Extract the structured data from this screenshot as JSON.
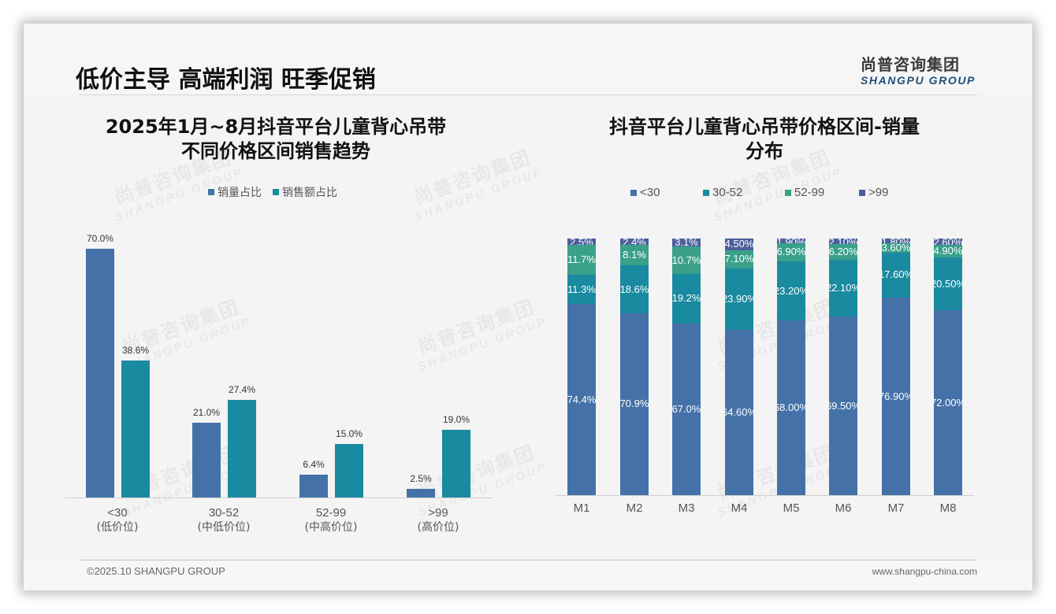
{
  "page": {
    "title": "低价主导 高端利润 旺季促销",
    "logo_cn": "尚普咨询集团",
    "logo_en": "SHANGPU GROUP",
    "watermark_cn": "尚普咨询集团",
    "watermark_en": "SHANGPU GROUP"
  },
  "footer": {
    "copyright": "©2025.10 SHANGPU GROUP",
    "website": "www.shangpu-china.com"
  },
  "colors": {
    "lt30": "#4472a8",
    "r30_52": "#1a8aa0",
    "r52_99": "#3aa08a",
    "gt99": "#4c5f9c",
    "volume_share": "#4472a8",
    "sales_share": "#1a8aa0"
  },
  "left_chart": {
    "title_line1": "2025年1月~8月抖音平台儿童背心吊带",
    "title_line2": "不同价格区间销售趋势",
    "legend": [
      "销量占比",
      "销售额占比"
    ],
    "categories": [
      {
        "range": "<30",
        "tier": "(低价位)"
      },
      {
        "range": "30-52",
        "tier": "(中低价位)"
      },
      {
        "range": "52-99",
        "tier": "(中高价位)"
      },
      {
        "range": ">99",
        "tier": "(高价位)"
      }
    ],
    "volume_labels": [
      "70.0%",
      "21.0%",
      "6.4%",
      "2.5%"
    ],
    "sales_labels": [
      "38.6%",
      "27.4%",
      "15.0%",
      "19.0%"
    ]
  },
  "right_chart": {
    "title_line1": "抖音平台儿童背心吊带价格区间-销量",
    "title_line2": "分布",
    "legend": [
      "<30",
      "30-52",
      "52-99",
      ">99"
    ],
    "months": [
      "M1",
      "M2",
      "M3",
      "M4",
      "M5",
      "M6",
      "M7",
      "M8"
    ],
    "labels": {
      "lt30": [
        "74.4%",
        "70.9%",
        "67.0%",
        "64.60%",
        "68.00%",
        "69.50%",
        "76.90%",
        "72.00%"
      ],
      "r30_52": [
        "11.3%",
        "18.6%",
        "19.2%",
        "23.90%",
        "23.20%",
        "22.10%",
        "17.60%",
        "20.50%"
      ],
      "r52_99": [
        "11.7%",
        "8.1%",
        "10.7%",
        "7.10%",
        "6.90%",
        "6.20%",
        "3.60%",
        "4.90%"
      ],
      "gt99": [
        "2.5%",
        "2.4%",
        "3.1%",
        "4.50%",
        "1.90%",
        "2.10%",
        "1.80%",
        "2.60%"
      ]
    }
  },
  "chart_data": [
    {
      "type": "bar",
      "title": "2025年1月~8月抖音平台儿童背心吊带不同价格区间销售趋势",
      "categories": [
        "<30 (低价位)",
        "30-52 (中低价位)",
        "52-99 (中高价位)",
        ">99 (高价位)"
      ],
      "series": [
        {
          "name": "销量占比",
          "values": [
            70.0,
            21.0,
            6.4,
            2.5
          ]
        },
        {
          "name": "销售额占比",
          "values": [
            38.6,
            27.4,
            15.0,
            19.0
          ]
        }
      ],
      "xlabel": "",
      "ylabel": "",
      "unit": "%",
      "legend_position": "top",
      "grid": false
    },
    {
      "type": "bar",
      "stacked": true,
      "percent_stacked": true,
      "title": "抖音平台儿童背心吊带价格区间-销量分布",
      "categories": [
        "M1",
        "M2",
        "M3",
        "M4",
        "M5",
        "M6",
        "M7",
        "M8"
      ],
      "series": [
        {
          "name": "<30",
          "values": [
            74.4,
            70.9,
            67.0,
            64.6,
            68.0,
            69.5,
            76.9,
            72.0
          ]
        },
        {
          "name": "30-52",
          "values": [
            11.3,
            18.6,
            19.2,
            23.9,
            23.2,
            22.1,
            17.6,
            20.5
          ]
        },
        {
          "name": "52-99",
          "values": [
            11.7,
            8.1,
            10.7,
            7.1,
            6.9,
            6.2,
            3.6,
            4.9
          ]
        },
        {
          "name": ">99",
          "values": [
            2.5,
            2.4,
            3.1,
            4.5,
            1.9,
            2.1,
            1.8,
            2.6
          ]
        }
      ],
      "xlabel": "",
      "ylabel": "",
      "unit": "%",
      "ylim": [
        0,
        100
      ],
      "legend_position": "top",
      "grid": false
    }
  ]
}
